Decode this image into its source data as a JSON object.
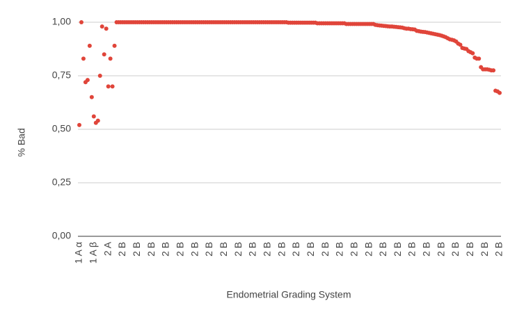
{
  "chart_data": {
    "type": "scatter",
    "x_label": "Endometrial Grading System",
    "y_label": "% Bad",
    "color": "#e0453a",
    "grid": true,
    "ylim": [
      0,
      1
    ],
    "yticks": [
      {
        "value": 0,
        "label": "0,00"
      },
      {
        "value": 0.25,
        "label": "0,25"
      },
      {
        "value": 0.5,
        "label": "0,50"
      },
      {
        "value": 0.75,
        "label": "0,75"
      },
      {
        "value": 1,
        "label": "1,00"
      }
    ],
    "categories": [
      "1 A α",
      null,
      null,
      null,
      null,
      null,
      null,
      "1 A β",
      null,
      null,
      null,
      null,
      null,
      null,
      "2 A",
      null,
      null,
      null,
      null,
      null,
      null,
      "2 B",
      null,
      null,
      null,
      null,
      null,
      null,
      "2 B",
      null,
      null,
      null,
      null,
      null,
      null,
      "2 B",
      null,
      null,
      null,
      null,
      null,
      null,
      "2 B",
      null,
      null,
      null,
      null,
      null,
      null,
      "2 B",
      null,
      null,
      null,
      null,
      null,
      null,
      "2 B",
      null,
      null,
      null,
      null,
      null,
      null,
      "2 B",
      null,
      null,
      null,
      null,
      null,
      null,
      "2 B",
      null,
      null,
      null,
      null,
      null,
      null,
      "2 B",
      null,
      null,
      null,
      null,
      null,
      null,
      "2 B",
      null,
      null,
      null,
      null,
      null,
      null,
      "2 B",
      null,
      null,
      null,
      null,
      null,
      null,
      "2 B",
      null,
      null,
      null,
      null,
      null,
      null,
      "2 B",
      null,
      null,
      null,
      null,
      null,
      null,
      "2 B",
      null,
      null,
      null,
      null,
      null,
      null,
      "2 B",
      null,
      null,
      null,
      null,
      null,
      null,
      "2 B",
      null,
      null,
      null,
      null,
      null,
      null,
      "2 B",
      null,
      null,
      null,
      null,
      null,
      null,
      "2 B",
      null,
      null,
      null,
      null,
      null,
      null,
      "2 B",
      null,
      null,
      null,
      null,
      null,
      null,
      "2 B",
      null,
      null,
      null,
      null,
      null,
      null,
      "2 B",
      null,
      null,
      null,
      null,
      null,
      null,
      "2 B",
      null,
      null,
      null,
      null,
      null,
      null,
      "2 B",
      null,
      null,
      null,
      null,
      null,
      null,
      "2 B",
      null,
      null,
      null,
      null,
      null,
      null,
      "2 B",
      null,
      null,
      null,
      null,
      null,
      null,
      "2 B",
      null,
      null,
      null,
      null,
      null,
      null,
      "2 B"
    ],
    "values": [
      0.52,
      1,
      0.83,
      0.72,
      0.73,
      0.89,
      0.65,
      0.56,
      0.53,
      0.54,
      0.75,
      0.98,
      0.85,
      0.97,
      0.7,
      0.83,
      0.7,
      0.89,
      1,
      1,
      1,
      1,
      1,
      1,
      1,
      1,
      1,
      1,
      1,
      1,
      1,
      1,
      1,
      1,
      1,
      1,
      1,
      1,
      1,
      1,
      1,
      1,
      1,
      1,
      1,
      1,
      1,
      1,
      1,
      1,
      1,
      1,
      1,
      1,
      1,
      1,
      1,
      1,
      1,
      1,
      1,
      1,
      1,
      1,
      1,
      1,
      1,
      1,
      1,
      1,
      1,
      1,
      1,
      1,
      1,
      1,
      1,
      1,
      1,
      1,
      1,
      1,
      1,
      1,
      1,
      1,
      1,
      1,
      1,
      1,
      1,
      1,
      1,
      1,
      1,
      1,
      1,
      1,
      1,
      1,
      1,
      0.998,
      0.998,
      0.998,
      0.998,
      0.998,
      0.998,
      0.998,
      0.998,
      0.998,
      0.998,
      0.998,
      0.998,
      0.998,
      0.998,
      0.995,
      0.995,
      0.995,
      0.995,
      0.995,
      0.995,
      0.995,
      0.995,
      0.995,
      0.995,
      0.995,
      0.995,
      0.995,
      0.995,
      0.992,
      0.992,
      0.992,
      0.992,
      0.992,
      0.992,
      0.992,
      0.992,
      0.992,
      0.992,
      0.992,
      0.992,
      0.992,
      0.992,
      0.988,
      0.986,
      0.985,
      0.984,
      0.983,
      0.982,
      0.981,
      0.98,
      0.98,
      0.979,
      0.978,
      0.977,
      0.976,
      0.975,
      0.972,
      0.97,
      0.97,
      0.968,
      0.967,
      0.966,
      0.96,
      0.958,
      0.956,
      0.955,
      0.954,
      0.952,
      0.95,
      0.948,
      0.946,
      0.944,
      0.942,
      0.94,
      0.937,
      0.934,
      0.93,
      0.925,
      0.92,
      0.918,
      0.915,
      0.91,
      0.9,
      0.895,
      0.88,
      0.877,
      0.875,
      0.865,
      0.86,
      0.855,
      0.835,
      0.83,
      0.83,
      0.79,
      0.78,
      0.78,
      0.78,
      0.778,
      0.775,
      0.775,
      0.68,
      0.677,
      0.67
    ]
  }
}
